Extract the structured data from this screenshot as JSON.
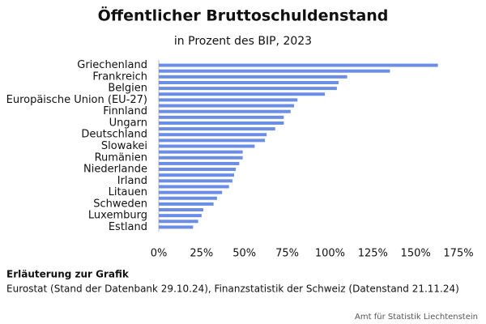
{
  "chart_data": {
    "type": "barh",
    "title": "Öffentlicher Bruttoschuldenstand",
    "subtitle": "in Prozent des BIP, 2023",
    "categories": [
      "Griechenland",
      null,
      "Frankreich",
      null,
      "Belgien",
      null,
      "Europäische Union (EU-27)",
      null,
      "Finnland",
      null,
      "Ungarn",
      null,
      "Deutschland",
      null,
      "Slowakei",
      null,
      "Rumänien",
      null,
      "Niederlande",
      null,
      "Irland",
      null,
      "Litauen",
      null,
      "Schweden",
      null,
      "Luxemburg",
      null,
      "Estland"
    ],
    "values": [
      163,
      135,
      110,
      105,
      104,
      97,
      81,
      79,
      77,
      73,
      73,
      68,
      63,
      62,
      56,
      49,
      49,
      47,
      45,
      44,
      43,
      41,
      37,
      34,
      32,
      26,
      25,
      23,
      20
    ],
    "color": "#6b8de6",
    "xlim": [
      0,
      175
    ],
    "xticks": [
      {
        "value": 0,
        "label": "0%"
      },
      {
        "value": 25,
        "label": "25%"
      },
      {
        "value": 50,
        "label": "50%"
      },
      {
        "value": 75,
        "label": "75%"
      },
      {
        "value": 100,
        "label": "100%"
      },
      {
        "value": 125,
        "label": "125%"
      },
      {
        "value": 150,
        "label": "150%"
      },
      {
        "value": 175,
        "label": "175%"
      }
    ],
    "note_title": "Erläuterung zur Grafik",
    "note": "Eurostat (Stand der Datenbank 29.10.24), Finanzstatistik der Schweiz (Datenstand 21.11.24)",
    "source": "Amt für Statistik Liechtenstein"
  }
}
